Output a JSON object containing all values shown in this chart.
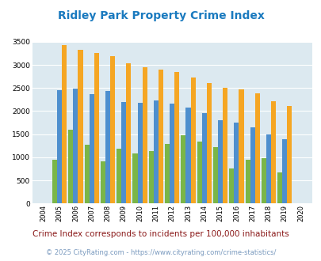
{
  "title": "Ridley Park Property Crime Index",
  "subtitle": "Crime Index corresponds to incidents per 100,000 inhabitants",
  "footer": "© 2025 CityRating.com - https://www.cityrating.com/crime-statistics/",
  "years": [
    2004,
    2005,
    2006,
    2007,
    2008,
    2009,
    2010,
    2011,
    2012,
    2013,
    2014,
    2015,
    2016,
    2017,
    2018,
    2019,
    2020
  ],
  "ridley_park": [
    0,
    950,
    1600,
    1265,
    920,
    1185,
    1090,
    1130,
    1285,
    1470,
    1345,
    1220,
    755,
    945,
    980,
    675,
    0
  ],
  "pennsylvania": [
    0,
    2450,
    2480,
    2375,
    2430,
    2205,
    2185,
    2230,
    2160,
    2080,
    1950,
    1805,
    1750,
    1650,
    1490,
    1400,
    0
  ],
  "national": [
    0,
    3420,
    3320,
    3250,
    3195,
    3040,
    2950,
    2895,
    2855,
    2720,
    2600,
    2500,
    2475,
    2380,
    2215,
    2115,
    0
  ],
  "ridley_color": "#7ab648",
  "pennsylvania_color": "#4e8fce",
  "national_color": "#f5a623",
  "bg_color": "#dce9f0",
  "title_color": "#1a7abf",
  "subtitle_color": "#8b1a1a",
  "footer_color": "#7a9abf",
  "ylim": [
    0,
    3500
  ],
  "yticks": [
    0,
    500,
    1000,
    1500,
    2000,
    2500,
    3000,
    3500
  ]
}
